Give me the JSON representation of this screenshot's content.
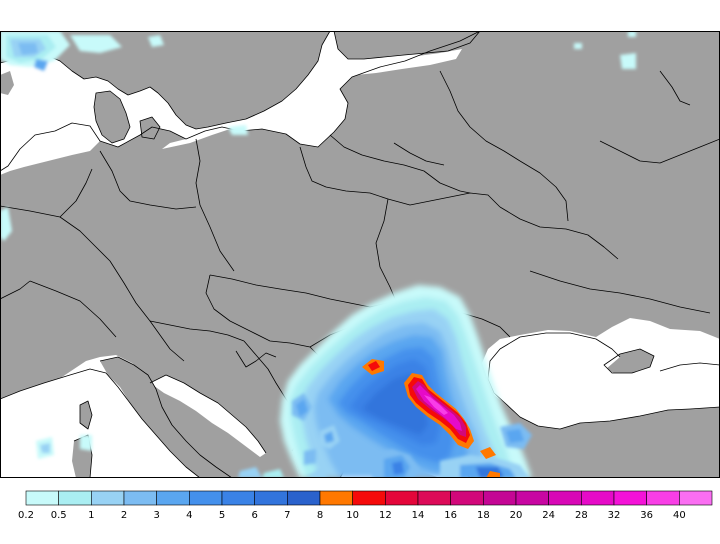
{
  "map": {
    "region": "Europe",
    "land_color": "#a0a0a0",
    "sea_color": "#ffffff",
    "border_color": "#000000"
  },
  "legend": {
    "bins": [
      {
        "label": "0.2",
        "color": "#c8fafa"
      },
      {
        "label": "0.5",
        "color": "#aaeef2"
      },
      {
        "label": "1",
        "color": "#98d2f4"
      },
      {
        "label": "2",
        "color": "#7cbcf2"
      },
      {
        "label": "3",
        "color": "#5aa6f0"
      },
      {
        "label": "4",
        "color": "#4490ec"
      },
      {
        "label": "5",
        "color": "#3a82e6"
      },
      {
        "label": "6",
        "color": "#3274dc"
      },
      {
        "label": "7",
        "color": "#2a62cc"
      },
      {
        "label": "8",
        "color": "#ff7800"
      },
      {
        "label": "10",
        "color": "#f50a0a"
      },
      {
        "label": "12",
        "color": "#e4063a"
      },
      {
        "label": "14",
        "color": "#dc0a58"
      },
      {
        "label": "16",
        "color": "#d2087a"
      },
      {
        "label": "18",
        "color": "#c40694"
      },
      {
        "label": "20",
        "color": "#c806a2"
      },
      {
        "label": "24",
        "color": "#d808b6"
      },
      {
        "label": "28",
        "color": "#e60ac8"
      },
      {
        "label": "32",
        "color": "#f412d8"
      },
      {
        "label": "36",
        "color": "#f83ee6"
      },
      {
        "label": "40",
        "color": "#fa6ef2"
      }
    ]
  }
}
